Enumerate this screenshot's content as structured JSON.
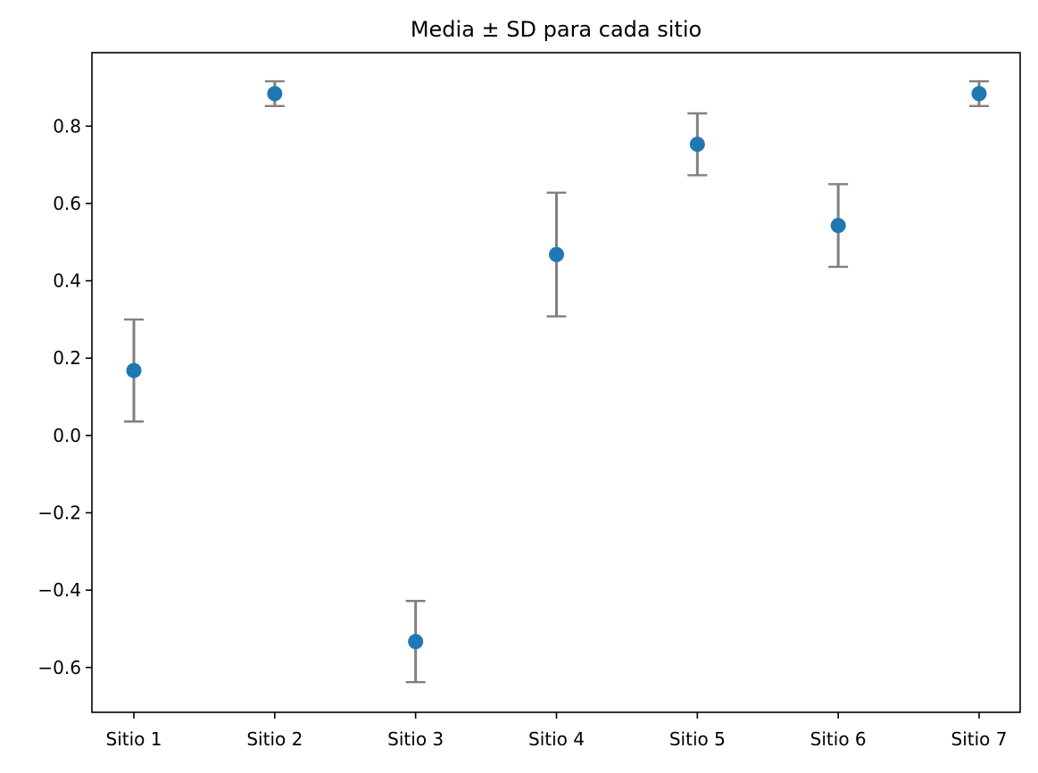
{
  "chart_data": {
    "type": "scatter",
    "title": "Media ± SD para cada sitio",
    "xlabel": "",
    "ylabel": "",
    "categories": [
      "Sitio 1",
      "Sitio 2",
      "Sitio 3",
      "Sitio 4",
      "Sitio 5",
      "Sitio 6",
      "Sitio 7"
    ],
    "series": [
      {
        "values": [
          0.168,
          0.884,
          -0.533,
          0.468,
          0.753,
          0.543,
          0.884
        ],
        "errors": [
          0.132,
          0.032,
          0.105,
          0.16,
          0.08,
          0.107,
          0.032
        ],
        "marker_color": "#1f77b4",
        "error_color": "#808080"
      }
    ],
    "ylim": [
      -0.716,
      0.99
    ],
    "yticks": [
      -0.6,
      -0.4,
      -0.2,
      0.0,
      0.2,
      0.4,
      0.6,
      0.8
    ],
    "ytick_labels": [
      "−0.6",
      "−0.4",
      "−0.2",
      "0.0",
      "0.2",
      "0.4",
      "0.6",
      "0.8"
    ],
    "grid": false,
    "legend": "none"
  }
}
